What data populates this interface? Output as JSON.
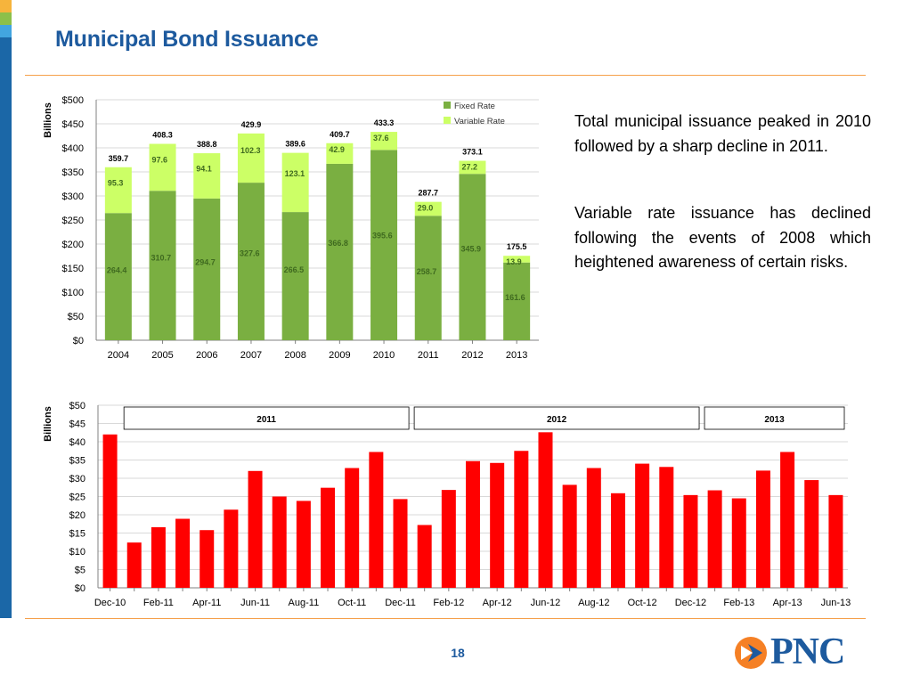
{
  "slide": {
    "title": "Municipal Bond Issuance",
    "page_number": "18",
    "logo_text": "PNC",
    "paragraphs": [
      "Total municipal issuance peaked in 2010 followed by a sharp decline in 2011.",
      "Variable rate issuance has declined following the events of 2008 which heightened awareness of certain risks."
    ],
    "colors": {
      "title": "#1d5a9e",
      "accent_rule": "#f5a04a",
      "fixed_rate": "#7aaf41",
      "variable_rate": "#ccff66",
      "monthly_bar": "#ff0000",
      "logo_orange": "#f58025"
    }
  },
  "chart_data": [
    {
      "type": "bar",
      "stacked": true,
      "ylabel": "Billions",
      "ylim": [
        0,
        500
      ],
      "yticks": [
        0,
        50,
        100,
        150,
        200,
        250,
        300,
        350,
        400,
        450,
        500
      ],
      "ytick_labels": [
        "$0",
        "$50",
        "$100",
        "$150",
        "$200",
        "$250",
        "$300",
        "$350",
        "$400",
        "$450",
        "$500"
      ],
      "categories": [
        "2004",
        "2005",
        "2006",
        "2007",
        "2008",
        "2009",
        "2010",
        "2011",
        "2012",
        "2013"
      ],
      "series": [
        {
          "name": "Fixed Rate",
          "values": [
            264.4,
            310.7,
            294.7,
            327.6,
            266.5,
            366.8,
            395.6,
            258.7,
            345.9,
            161.6
          ]
        },
        {
          "name": "Variable Rate",
          "values": [
            95.3,
            97.6,
            94.1,
            102.3,
            123.1,
            42.9,
            37.6,
            29.0,
            27.2,
            13.9
          ]
        }
      ],
      "totals": [
        359.7,
        408.3,
        388.8,
        429.9,
        389.6,
        409.7,
        433.3,
        287.7,
        373.1,
        175.5
      ],
      "fixed_labels": [
        "264.4",
        "310.7",
        "294.7",
        "327.6",
        "266.5",
        "366.8",
        "395.6",
        "258.7",
        "345.9",
        "161.6"
      ],
      "variable_labels": [
        "95.3",
        "97.6",
        "94.1",
        "102.3",
        "123.1",
        "42.9",
        "37.6",
        "29.0",
        "27.2",
        "13.9"
      ],
      "total_labels": [
        "359.7",
        "408.3",
        "388.8",
        "429.9",
        "389.6",
        "409.7",
        "433.3",
        "287.7",
        "373.1",
        "175.5"
      ],
      "legend_position": "top-right",
      "grid": true
    },
    {
      "type": "bar",
      "ylabel": "Billions",
      "ylim": [
        0,
        50
      ],
      "yticks": [
        0,
        5,
        10,
        15,
        20,
        25,
        30,
        35,
        40,
        45,
        50
      ],
      "ytick_labels": [
        "$0",
        "$5",
        "$10",
        "$15",
        "$20",
        "$25",
        "$30",
        "$35",
        "$40",
        "$45",
        "$50"
      ],
      "x": [
        "Dec-10",
        "Jan-11",
        "Feb-11",
        "Mar-11",
        "Apr-11",
        "May-11",
        "Jun-11",
        "Jul-11",
        "Aug-11",
        "Sep-11",
        "Oct-11",
        "Nov-11",
        "Dec-11",
        "Jan-12",
        "Feb-12",
        "Mar-12",
        "Apr-12",
        "May-12",
        "Jun-12",
        "Jul-12",
        "Aug-12",
        "Sep-12",
        "Oct-12",
        "Nov-12",
        "Dec-12",
        "Jan-13",
        "Feb-13",
        "Mar-13",
        "Apr-13",
        "May-13",
        "Jun-13"
      ],
      "xtick_labels": [
        "Dec-10",
        "Feb-11",
        "Apr-11",
        "Jun-11",
        "Aug-11",
        "Oct-11",
        "Dec-11",
        "Feb-12",
        "Apr-12",
        "Jun-12",
        "Aug-12",
        "Oct-12",
        "Dec-12",
        "Feb-13",
        "Apr-13",
        "Jun-13"
      ],
      "values": [
        42.0,
        12.4,
        16.6,
        18.9,
        15.8,
        21.4,
        32.0,
        25.0,
        23.8,
        27.4,
        32.8,
        37.2,
        24.3,
        17.2,
        26.8,
        34.7,
        34.2,
        37.5,
        42.6,
        28.2,
        32.8,
        25.9,
        34.0,
        33.1,
        25.4,
        26.7,
        24.5,
        32.1,
        37.2,
        29.5,
        25.4
      ],
      "year_groups": [
        {
          "label": "2011",
          "start": 1,
          "end": 12
        },
        {
          "label": "2012",
          "start": 13,
          "end": 24
        },
        {
          "label": "2013",
          "start": 25,
          "end": 30
        }
      ],
      "grid": true
    }
  ]
}
